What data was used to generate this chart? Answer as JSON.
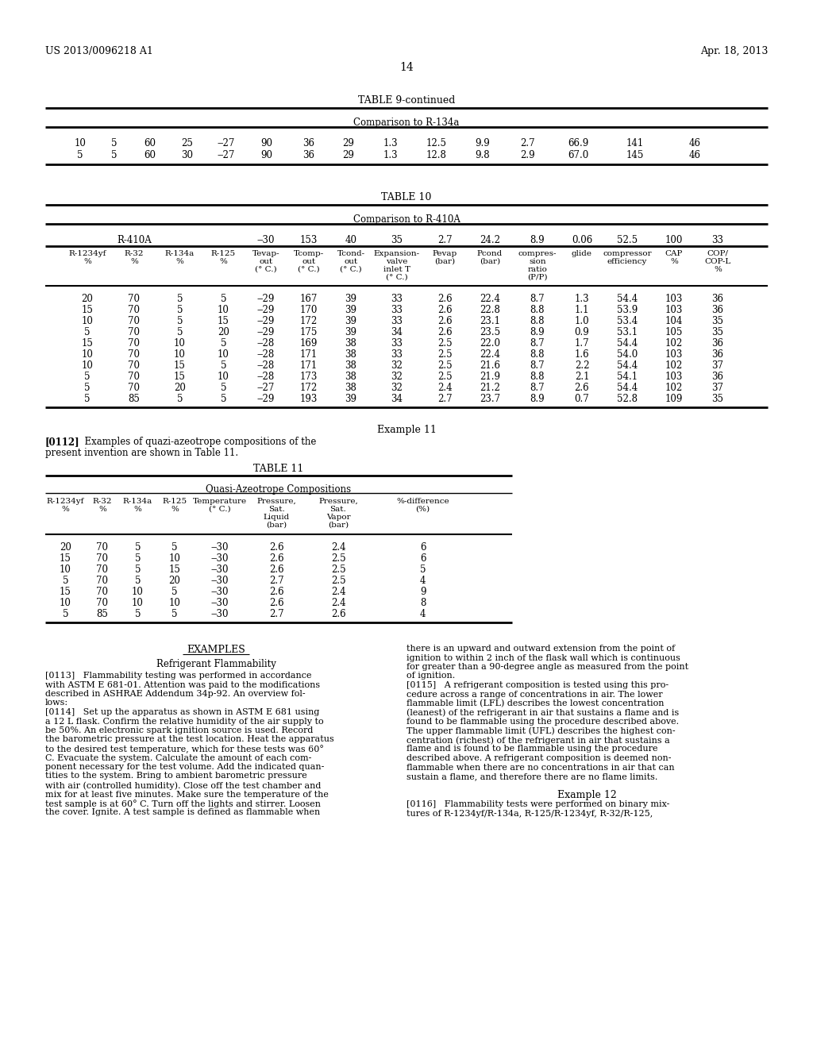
{
  "header_left": "US 2013/0096218 A1",
  "header_right": "Apr. 18, 2013",
  "page_number": "14",
  "table9_title": "TABLE 9-continued",
  "table9_comparison": "Comparison to R-134a",
  "table9_rows": [
    [
      "10",
      "5",
      "60",
      "25",
      "‒27",
      "90",
      "36",
      "29",
      "1.3",
      "12.5",
      "9.9",
      "2.7",
      "66.9",
      "141",
      "46"
    ],
    [
      "5",
      "5",
      "60",
      "30",
      "‒27",
      "90",
      "36",
      "29",
      "1.3",
      "12.8",
      "9.8",
      "2.9",
      "67.0",
      "145",
      "46"
    ]
  ],
  "table10_title": "TABLE 10",
  "table10_comparison": "Comparison to R-410A",
  "table10_ref_label": "R-410A",
  "table10_ref_vals": [
    "‒30",
    "153",
    "40",
    "35",
    "2.7",
    "24.2",
    "8.9",
    "0.06",
    "52.5",
    "100",
    "33"
  ],
  "table10_hdr1": [
    "R-1234yf",
    "R-32",
    "R-134a",
    "R-125",
    "Tevap-",
    "Tcomp-",
    "Tcond-",
    "Expansion-",
    "Pevap",
    "Pcond",
    "compres-",
    "glide",
    "compressor",
    "CAP",
    "COP/"
  ],
  "table10_hdr2": [
    "%",
    "%",
    "%",
    "%",
    "out",
    "out",
    "out",
    "valve",
    "(bar)",
    "(bar)",
    "sion",
    "",
    "efficiency",
    "%",
    "COP-L"
  ],
  "table10_hdr3": [
    "",
    "",
    "",
    "",
    "(° C.)",
    "(° C.)",
    "(° C.)",
    "inlet T",
    "",
    "",
    "ratio",
    "",
    "",
    "",
    "%"
  ],
  "table10_hdr4": [
    "",
    "",
    "",
    "",
    "",
    "",
    "",
    "(° C.)",
    "",
    "",
    "(P/P)",
    "",
    "",
    "",
    ""
  ],
  "table10_rows": [
    [
      "20",
      "70",
      "5",
      "5",
      "‒29",
      "167",
      "39",
      "33",
      "2.6",
      "22.4",
      "8.7",
      "1.3",
      "54.4",
      "103",
      "36"
    ],
    [
      "15",
      "70",
      "5",
      "10",
      "‒29",
      "170",
      "39",
      "33",
      "2.6",
      "22.8",
      "8.8",
      "1.1",
      "53.9",
      "103",
      "36"
    ],
    [
      "10",
      "70",
      "5",
      "15",
      "‒29",
      "172",
      "39",
      "33",
      "2.6",
      "23.1",
      "8.8",
      "1.0",
      "53.4",
      "104",
      "35"
    ],
    [
      "5",
      "70",
      "5",
      "20",
      "‒29",
      "175",
      "39",
      "34",
      "2.6",
      "23.5",
      "8.9",
      "0.9",
      "53.1",
      "105",
      "35"
    ],
    [
      "15",
      "70",
      "10",
      "5",
      "‒28",
      "169",
      "38",
      "33",
      "2.5",
      "22.0",
      "8.7",
      "1.7",
      "54.4",
      "102",
      "36"
    ],
    [
      "10",
      "70",
      "10",
      "10",
      "‒28",
      "171",
      "38",
      "33",
      "2.5",
      "22.4",
      "8.8",
      "1.6",
      "54.0",
      "103",
      "36"
    ],
    [
      "10",
      "70",
      "15",
      "5",
      "‒28",
      "171",
      "38",
      "32",
      "2.5",
      "21.6",
      "8.7",
      "2.2",
      "54.4",
      "102",
      "37"
    ],
    [
      "5",
      "70",
      "15",
      "10",
      "‒28",
      "173",
      "38",
      "32",
      "2.5",
      "21.9",
      "8.8",
      "2.1",
      "54.1",
      "103",
      "36"
    ],
    [
      "5",
      "70",
      "20",
      "5",
      "‒27",
      "172",
      "38",
      "32",
      "2.4",
      "21.2",
      "8.7",
      "2.6",
      "54.4",
      "102",
      "37"
    ],
    [
      "5",
      "85",
      "5",
      "5",
      "‒29",
      "193",
      "39",
      "34",
      "2.7",
      "23.7",
      "8.9",
      "0.7",
      "52.8",
      "109",
      "35"
    ]
  ],
  "example11_title": "Example 11",
  "example11_para_tag": "[0112]",
  "example11_para_text": "  Examples of quazi-azeotrope compositions of the present invention are shown in Table 11.",
  "table11_title": "TABLE 11",
  "table11_subtitle": "Quasi-Azeotrope Compositions",
  "table11_hdr1": [
    "R-1234yf",
    "R-32",
    "R-134a",
    "R-125",
    "Temperature",
    "Pressure,",
    "Pressure,",
    "%-difference"
  ],
  "table11_hdr2": [
    "%",
    "%",
    "%",
    "%",
    "(° C.)",
    "Sat.",
    "Sat.",
    "(%)"
  ],
  "table11_hdr3": [
    "",
    "",
    "",
    "",
    "",
    "Liquid",
    "Vapor",
    ""
  ],
  "table11_hdr4": [
    "",
    "",
    "",
    "",
    "",
    "(bar)",
    "(bar)",
    ""
  ],
  "table11_rows": [
    [
      "20",
      "70",
      "5",
      "5",
      "‒30",
      "2.6",
      "2.4",
      "6"
    ],
    [
      "15",
      "70",
      "5",
      "10",
      "‒30",
      "2.6",
      "2.5",
      "6"
    ],
    [
      "10",
      "70",
      "5",
      "15",
      "‒30",
      "2.6",
      "2.5",
      "5"
    ],
    [
      "5",
      "70",
      "5",
      "20",
      "‒30",
      "2.7",
      "2.5",
      "4"
    ],
    [
      "15",
      "70",
      "10",
      "5",
      "‒30",
      "2.6",
      "2.4",
      "9"
    ],
    [
      "10",
      "70",
      "10",
      "10",
      "‒30",
      "2.6",
      "2.4",
      "8"
    ],
    [
      "5",
      "85",
      "5",
      "5",
      "‒30",
      "2.7",
      "2.6",
      "4"
    ]
  ],
  "examples_heading": "EXAMPLES",
  "examples_subheading": "Refrigerant Flammability",
  "left_col_lines": [
    "[0113]   Flammability testing was performed in accordance",
    "with ASTM E 681-01. Attention was paid to the modifications",
    "described in ASHRAE Addendum 34p-92. An overview fol-",
    "lows:",
    "[0114]   Set up the apparatus as shown in ASTM E 681 using",
    "a 12 L flask. Confirm the relative humidity of the air supply to",
    "be 50%. An electronic spark ignition source is used. Record",
    "the barometric pressure at the test location. Heat the apparatus",
    "to the desired test temperature, which for these tests was 60°",
    "C. Evacuate the system. Calculate the amount of each com-",
    "ponent necessary for the test volume. Add the indicated quan-",
    "tities to the system. Bring to ambient barometric pressure",
    "with air (controlled humidity). Close off the test chamber and",
    "mix for at least five minutes. Make sure the temperature of the",
    "test sample is at 60° C. Turn off the lights and stirrer. Loosen",
    "the cover. Ignite. A test sample is defined as flammable when"
  ],
  "right_col_lines": [
    "there is an upward and outward extension from the point of",
    "ignition to within 2 inch of the flask wall which is continuous",
    "for greater than a 90-degree angle as measured from the point",
    "of ignition.",
    "[0115]   A refrigerant composition is tested using this pro-",
    "cedure across a range of concentrations in air. The lower",
    "flammable limit (LFL) describes the lowest concentration",
    "(leanest) of the refrigerant in air that sustains a flame and is",
    "found to be flammable using the procedure described above.",
    "The upper flammable limit (UFL) describes the highest con-",
    "centration (richest) of the refrigerant in air that sustains a",
    "flame and is found to be flammable using the procedure",
    "described above. A refrigerant composition is deemed non-",
    "flammable when there are no concentrations in air that can",
    "sustain a flame, and therefore there are no flame limits."
  ],
  "example12_title": "Example 12",
  "right_col_lines2": [
    "[0116]   Flammability tests were performed on binary mix-",
    "tures of R-1234yf/R-134a, R-125/R-1234yf, R-32/R-125,"
  ]
}
